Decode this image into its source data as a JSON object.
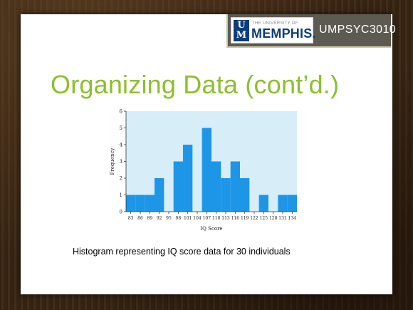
{
  "header": {
    "logo_small": "THE UNIVERSITY OF",
    "logo_big": "MEMPHIS.",
    "logo_u": "U",
    "logo_m": "M",
    "course": "UMPSYC3010"
  },
  "slide": {
    "title": "Organizing Data (cont’d.)",
    "caption": "Histogram representing IQ score data for 30 individuals"
  },
  "colors": {
    "title": "#8cbf2d",
    "plot_bg": "#d7eef8",
    "bar": "#1e96e8",
    "brand": "#0b3c7d"
  },
  "chart_data": {
    "type": "bar",
    "categories": [
      "83",
      "86",
      "89",
      "92",
      "95",
      "98",
      "101",
      "104",
      "107",
      "110",
      "113",
      "116",
      "119",
      "122",
      "125",
      "128",
      "131",
      "134"
    ],
    "values": [
      1,
      1,
      1,
      2,
      0,
      3,
      4,
      0,
      5,
      3,
      2,
      3,
      2,
      0,
      1,
      0,
      1,
      1
    ],
    "xlabel": "IQ Score",
    "ylabel": "Frequency",
    "ylim": [
      0,
      6
    ],
    "yticks": [
      "0",
      "1",
      "2",
      "3",
      "4",
      "5",
      "6"
    ],
    "grid": false
  }
}
